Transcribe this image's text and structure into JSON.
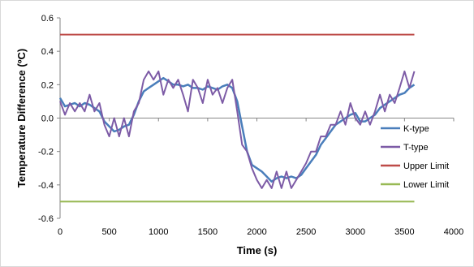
{
  "chart_data": {
    "type": "line",
    "title": "",
    "xlabel": "Time (s)",
    "ylabel": "Temperature Difference (ºC)",
    "xlim": [
      0,
      4000
    ],
    "ylim": [
      -0.6,
      0.6
    ],
    "x_ticks": [
      "0",
      "500",
      "1000",
      "1500",
      "2000",
      "2500",
      "3000",
      "3500",
      "4000"
    ],
    "y_ticks": [
      "0.6",
      "0.4",
      "0.2",
      "0.0",
      "-0.2",
      "-0.4",
      "-0.6"
    ],
    "grid": false,
    "legend_position": "right",
    "series": [
      {
        "name": "K-type",
        "color": "#4a7ebb",
        "x": [
          0,
          50,
          100,
          150,
          200,
          250,
          300,
          350,
          400,
          450,
          500,
          550,
          600,
          650,
          700,
          750,
          800,
          850,
          900,
          950,
          1000,
          1050,
          1100,
          1150,
          1200,
          1250,
          1300,
          1350,
          1400,
          1450,
          1500,
          1550,
          1600,
          1650,
          1700,
          1750,
          1800,
          1850,
          1900,
          1950,
          2000,
          2050,
          2100,
          2150,
          2200,
          2250,
          2300,
          2350,
          2400,
          2450,
          2500,
          2550,
          2600,
          2650,
          2700,
          2750,
          2800,
          2850,
          2900,
          2950,
          3000,
          3050,
          3100,
          3150,
          3200,
          3250,
          3300,
          3350,
          3400,
          3450,
          3500,
          3550,
          3600
        ],
        "values": [
          0.12,
          0.07,
          0.08,
          0.09,
          0.07,
          0.09,
          0.08,
          0.06,
          0.04,
          -0.02,
          -0.05,
          -0.08,
          -0.07,
          -0.05,
          -0.04,
          0.02,
          0.1,
          0.16,
          0.18,
          0.2,
          0.22,
          0.24,
          0.22,
          0.2,
          0.2,
          0.19,
          0.2,
          0.18,
          0.18,
          0.17,
          0.19,
          0.18,
          0.17,
          0.19,
          0.2,
          0.18,
          0.1,
          -0.05,
          -0.2,
          -0.28,
          -0.3,
          -0.32,
          -0.35,
          -0.38,
          -0.36,
          -0.35,
          -0.36,
          -0.35,
          -0.36,
          -0.34,
          -0.3,
          -0.26,
          -0.22,
          -0.16,
          -0.12,
          -0.08,
          -0.04,
          -0.02,
          0.0,
          0.02,
          0.03,
          -0.02,
          -0.02,
          0.0,
          0.02,
          0.06,
          0.08,
          0.1,
          0.12,
          0.14,
          0.15,
          0.18,
          0.2
        ]
      },
      {
        "name": "T-type",
        "color": "#7d5ba6",
        "x": [
          0,
          50,
          100,
          150,
          200,
          250,
          300,
          350,
          400,
          450,
          500,
          550,
          600,
          650,
          700,
          750,
          800,
          850,
          900,
          950,
          1000,
          1050,
          1100,
          1150,
          1200,
          1250,
          1300,
          1350,
          1400,
          1450,
          1500,
          1550,
          1600,
          1650,
          1700,
          1750,
          1800,
          1850,
          1900,
          1950,
          2000,
          2050,
          2100,
          2150,
          2200,
          2250,
          2300,
          2350,
          2400,
          2450,
          2500,
          2550,
          2600,
          2650,
          2700,
          2750,
          2800,
          2850,
          2900,
          2950,
          3000,
          3050,
          3100,
          3150,
          3200,
          3250,
          3300,
          3350,
          3400,
          3450,
          3500,
          3550,
          3600
        ],
        "values": [
          0.1,
          0.02,
          0.09,
          0.04,
          0.09,
          0.04,
          0.14,
          0.04,
          0.09,
          -0.04,
          -0.11,
          0.0,
          -0.11,
          0.0,
          -0.11,
          0.04,
          0.09,
          0.23,
          0.28,
          0.23,
          0.28,
          0.14,
          0.23,
          0.18,
          0.23,
          0.14,
          0.04,
          0.23,
          0.18,
          0.09,
          0.23,
          0.14,
          0.18,
          0.09,
          0.18,
          0.23,
          0.04,
          -0.16,
          -0.2,
          -0.3,
          -0.37,
          -0.42,
          -0.37,
          -0.42,
          -0.32,
          -0.42,
          -0.32,
          -0.42,
          -0.37,
          -0.32,
          -0.27,
          -0.2,
          -0.2,
          -0.11,
          -0.11,
          -0.04,
          -0.04,
          0.04,
          -0.04,
          0.09,
          0.0,
          -0.04,
          0.04,
          -0.04,
          0.04,
          0.14,
          0.04,
          0.14,
          0.09,
          0.18,
          0.28,
          0.18,
          0.28
        ]
      },
      {
        "name": "Upper Limit",
        "color": "#be4b48",
        "x": [
          0,
          3600
        ],
        "values": [
          0.5,
          0.5
        ]
      },
      {
        "name": "Lower Limit",
        "color": "#98b954",
        "x": [
          0,
          3600
        ],
        "values": [
          -0.5,
          -0.5
        ]
      }
    ]
  }
}
